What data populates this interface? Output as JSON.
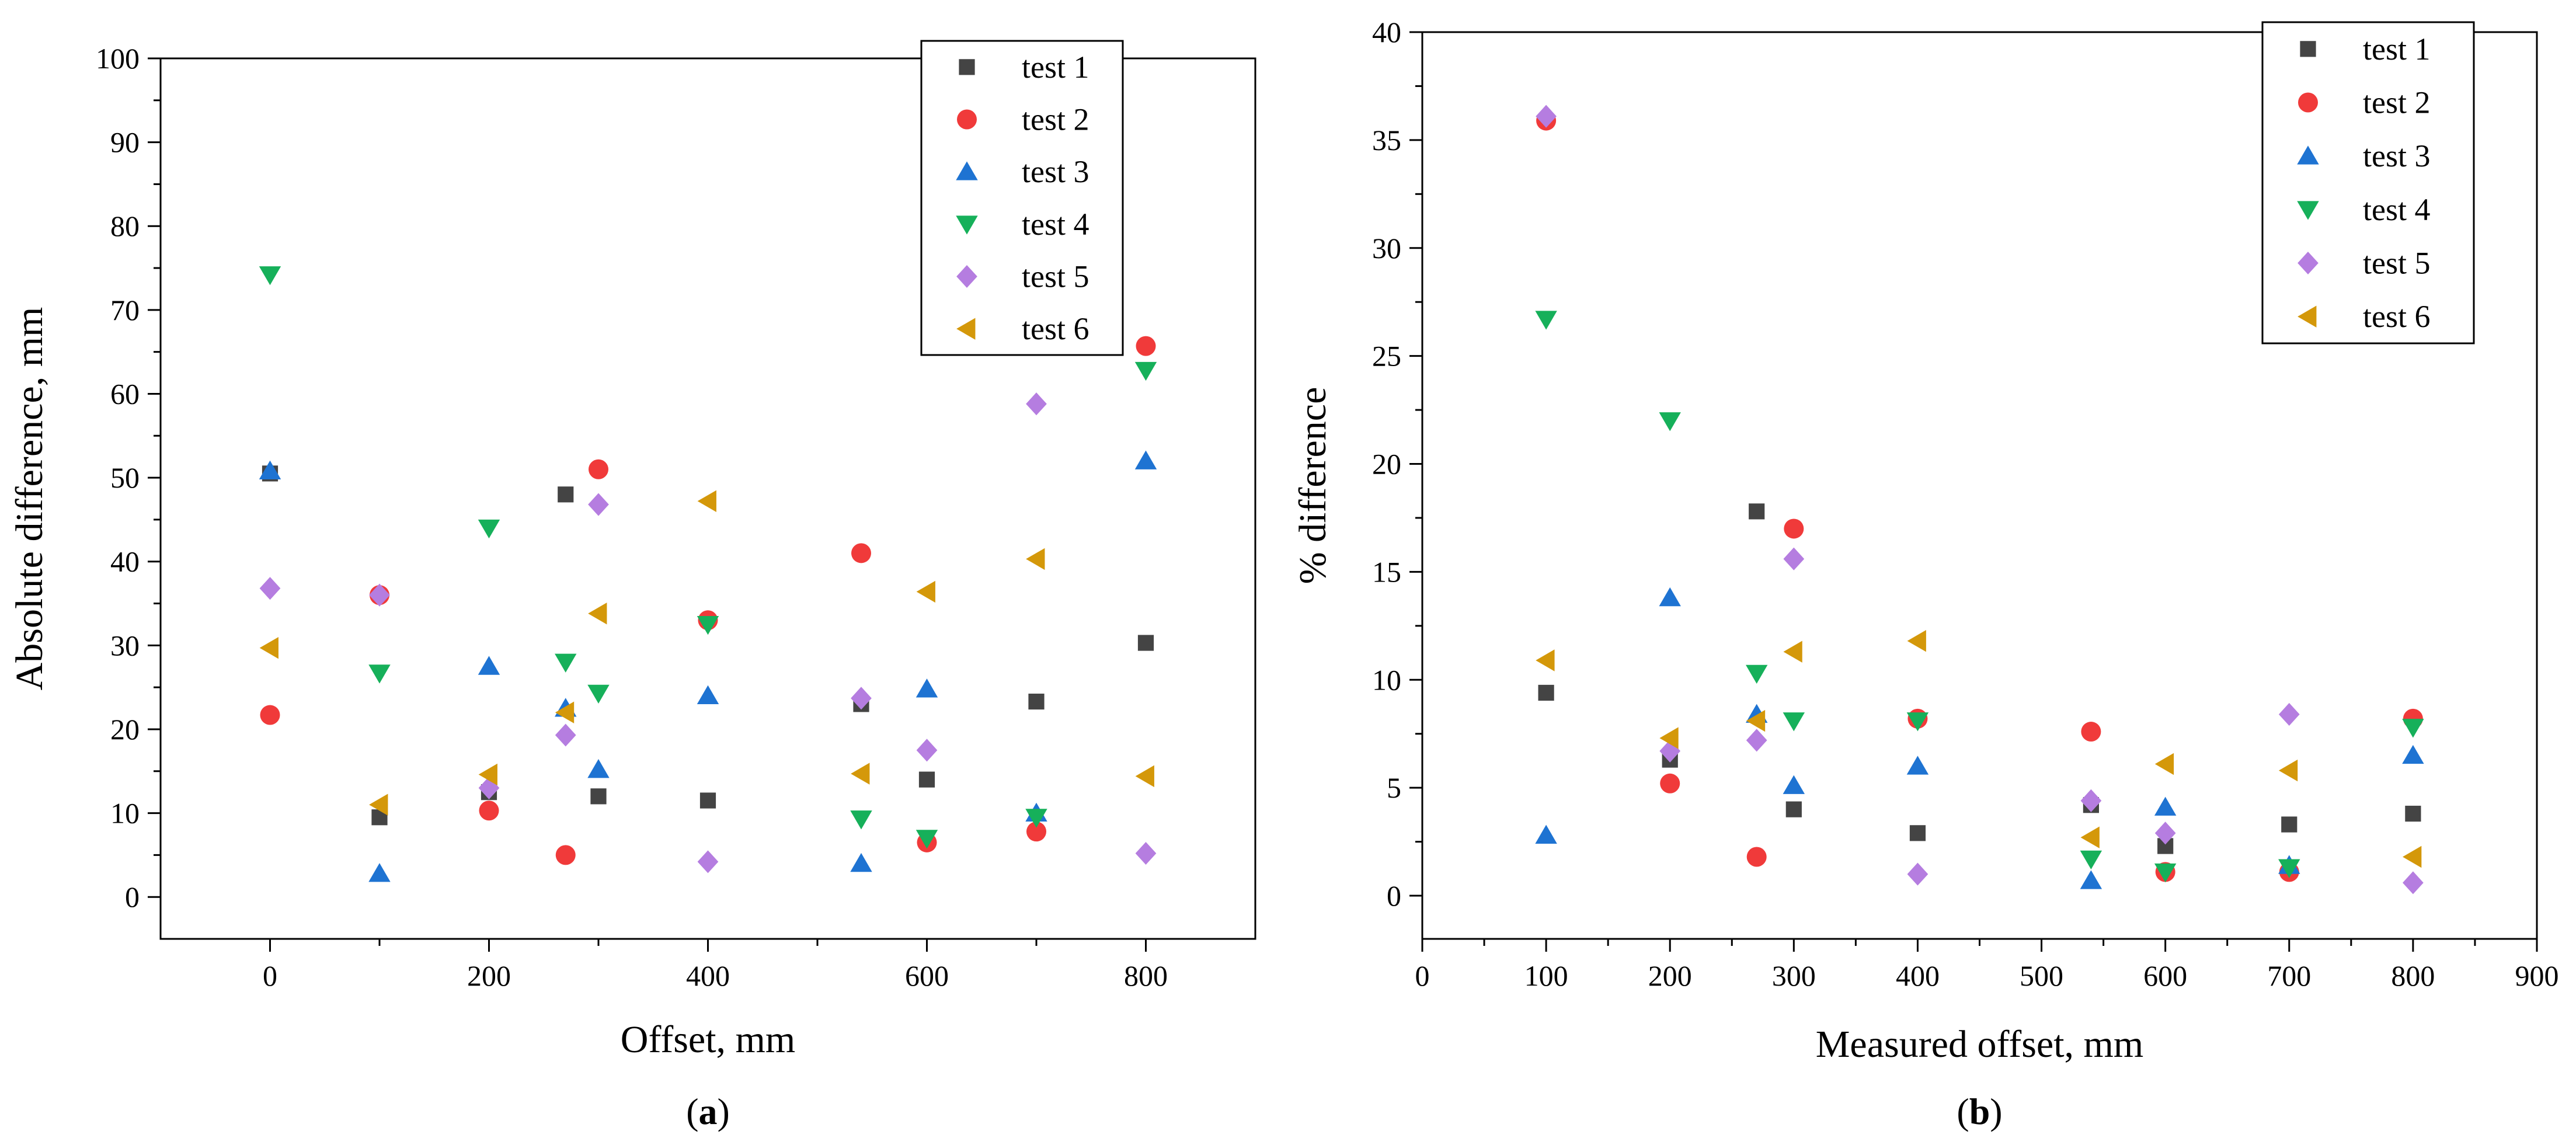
{
  "figure": {
    "panels": [
      {
        "label_prefix": "(",
        "label_letter": "a",
        "label_suffix": ")"
      },
      {
        "label_prefix": "(",
        "label_letter": "b",
        "label_suffix": ")"
      }
    ]
  },
  "colors": {
    "test1": "#444444",
    "test2": "#f03a3a",
    "test3": "#1e73d2",
    "test4": "#16b05a",
    "test5": "#b57de0",
    "test6": "#d4980a"
  },
  "chart_data": [
    {
      "type": "scatter",
      "title": "",
      "xlabel": "Offset, mm",
      "ylabel": "Absolute difference, mm",
      "xlim": [
        -100,
        900
      ],
      "ylim": [
        -5,
        100
      ],
      "xticks": [
        0,
        200,
        400,
        600,
        800
      ],
      "xtick_labels": [
        "0",
        "200",
        "400",
        "600",
        "800"
      ],
      "yticks": [
        0,
        10,
        20,
        30,
        40,
        50,
        60,
        70,
        80,
        90,
        100
      ],
      "ytick_labels": [
        "0",
        "10",
        "20",
        "30",
        "40",
        "50",
        "60",
        "70",
        "80",
        "90",
        "100"
      ],
      "legend_position": "top-right",
      "series": [
        {
          "name": "test 1",
          "marker": "square",
          "color": "#444444",
          "points": [
            [
              0,
              50.5
            ],
            [
              100,
              9.5
            ],
            [
              200,
              12.5
            ],
            [
              270,
              48
            ],
            [
              300,
              12
            ],
            [
              400,
              11.5
            ],
            [
              540,
              23
            ],
            [
              600,
              14
            ],
            [
              700,
              23.3
            ],
            [
              800,
              30.3
            ]
          ]
        },
        {
          "name": "test 2",
          "marker": "circle",
          "color": "#f03a3a",
          "points": [
            [
              0,
              21.7
            ],
            [
              100,
              36
            ],
            [
              200,
              10.3
            ],
            [
              270,
              5
            ],
            [
              300,
              51
            ],
            [
              400,
              33
            ],
            [
              540,
              41
            ],
            [
              600,
              6.5
            ],
            [
              700,
              7.8
            ],
            [
              800,
              65.7
            ]
          ]
        },
        {
          "name": "test 3",
          "marker": "triangle-up",
          "color": "#1e73d2",
          "points": [
            [
              0,
              50.8
            ],
            [
              100,
              2.8
            ],
            [
              200,
              27.5
            ],
            [
              270,
              22.5
            ],
            [
              300,
              15.2
            ],
            [
              400,
              24
            ],
            [
              540,
              4
            ],
            [
              600,
              24.8
            ],
            [
              700,
              10
            ],
            [
              800,
              52
            ]
          ]
        },
        {
          "name": "test 4",
          "marker": "triangle-down",
          "color": "#16b05a",
          "points": [
            [
              0,
              74.2
            ],
            [
              100,
              26.7
            ],
            [
              200,
              44
            ],
            [
              270,
              28
            ],
            [
              300,
              24.3
            ],
            [
              400,
              32.5
            ],
            [
              540,
              9.3
            ],
            [
              600,
              7
            ],
            [
              700,
              9.5
            ],
            [
              800,
              62.8
            ]
          ]
        },
        {
          "name": "test 5",
          "marker": "diamond",
          "color": "#b57de0",
          "points": [
            [
              0,
              36.8
            ],
            [
              100,
              36
            ],
            [
              200,
              13
            ],
            [
              270,
              19.3
            ],
            [
              300,
              46.8
            ],
            [
              400,
              4.2
            ],
            [
              540,
              23.7
            ],
            [
              600,
              17.5
            ],
            [
              700,
              58.8
            ],
            [
              800,
              5.2
            ]
          ]
        },
        {
          "name": "test 6",
          "marker": "triangle-left",
          "color": "#d4980a",
          "points": [
            [
              0,
              29.7
            ],
            [
              100,
              11
            ],
            [
              200,
              14.6
            ],
            [
              270,
              22
            ],
            [
              300,
              33.8
            ],
            [
              400,
              47.2
            ],
            [
              540,
              14.7
            ],
            [
              600,
              36.4
            ],
            [
              700,
              40.3
            ],
            [
              800,
              14.4
            ]
          ]
        }
      ]
    },
    {
      "type": "scatter",
      "title": "",
      "xlabel": "Measured offset, mm",
      "ylabel": "% difference",
      "xlim": [
        0,
        900
      ],
      "ylim": [
        -2,
        40
      ],
      "xticks": [
        0,
        100,
        200,
        300,
        400,
        500,
        600,
        700,
        800,
        900
      ],
      "xtick_labels": [
        "0",
        "100",
        "200",
        "300",
        "400",
        "500",
        "600",
        "700",
        "800",
        "900"
      ],
      "yticks": [
        0,
        5,
        10,
        15,
        20,
        25,
        30,
        35,
        40
      ],
      "ytick_labels": [
        "0",
        "5",
        "10",
        "15",
        "20",
        "25",
        "30",
        "35",
        "40"
      ],
      "legend_position": "top-right",
      "series": [
        {
          "name": "test 1",
          "marker": "square",
          "color": "#444444",
          "points": [
            [
              100,
              9.4
            ],
            [
              200,
              6.3
            ],
            [
              270,
              17.8
            ],
            [
              300,
              4
            ],
            [
              400,
              2.9
            ],
            [
              540,
              4.2
            ],
            [
              600,
              2.3
            ],
            [
              700,
              3.3
            ],
            [
              800,
              3.8
            ]
          ]
        },
        {
          "name": "test 2",
          "marker": "circle",
          "color": "#f03a3a",
          "points": [
            [
              100,
              35.9
            ],
            [
              200,
              5.2
            ],
            [
              270,
              1.8
            ],
            [
              300,
              17
            ],
            [
              400,
              8.2
            ],
            [
              540,
              7.6
            ],
            [
              600,
              1.1
            ],
            [
              700,
              1.1
            ],
            [
              800,
              8.2
            ]
          ]
        },
        {
          "name": "test 3",
          "marker": "triangle-up",
          "color": "#1e73d2",
          "points": [
            [
              100,
              2.8
            ],
            [
              200,
              13.8
            ],
            [
              270,
              8.4
            ],
            [
              300,
              5.1
            ],
            [
              400,
              6
            ],
            [
              540,
              0.7
            ],
            [
              600,
              4.1
            ],
            [
              700,
              1.4
            ],
            [
              800,
              6.5
            ]
          ]
        },
        {
          "name": "test 4",
          "marker": "triangle-down",
          "color": "#16b05a",
          "points": [
            [
              100,
              26.7
            ],
            [
              200,
              22
            ],
            [
              270,
              10.3
            ],
            [
              300,
              8.1
            ],
            [
              400,
              8.1
            ],
            [
              540,
              1.7
            ],
            [
              600,
              1.1
            ],
            [
              700,
              1.3
            ],
            [
              800,
              7.8
            ]
          ]
        },
        {
          "name": "test 5",
          "marker": "diamond",
          "color": "#b57de0",
          "points": [
            [
              100,
              36.1
            ],
            [
              200,
              6.7
            ],
            [
              270,
              7.2
            ],
            [
              300,
              15.6
            ],
            [
              400,
              1
            ],
            [
              540,
              4.4
            ],
            [
              600,
              2.9
            ],
            [
              700,
              8.4
            ],
            [
              800,
              0.6
            ]
          ]
        },
        {
          "name": "test 6",
          "marker": "triangle-left",
          "color": "#d4980a",
          "points": [
            [
              100,
              10.9
            ],
            [
              200,
              7.3
            ],
            [
              270,
              8.1
            ],
            [
              300,
              11.3
            ],
            [
              400,
              11.8
            ],
            [
              540,
              2.7
            ],
            [
              600,
              6.1
            ],
            [
              700,
              5.8
            ],
            [
              800,
              1.8
            ]
          ]
        }
      ]
    }
  ]
}
